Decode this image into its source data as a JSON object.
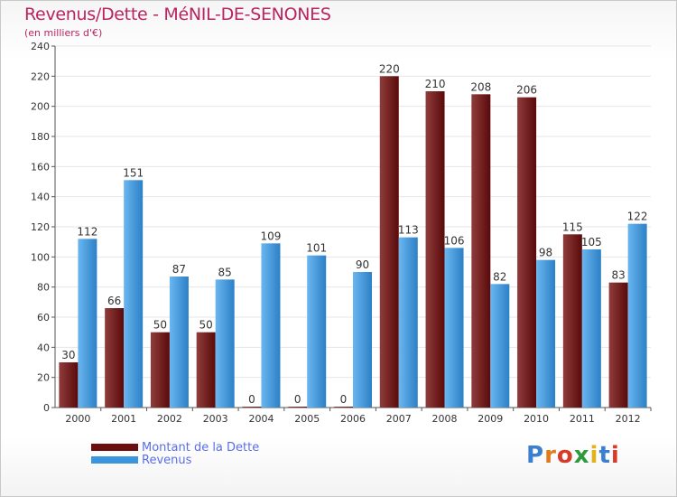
{
  "title": "Revenus/Dette - MéNIL-DE-SENONES",
  "subtitle": "(en milliers d'€)",
  "logo_text": "Proxiti",
  "colors": {
    "dette": "#6b0f0f",
    "dette_light": "#8a3a3a",
    "revenus": "#2f86cc",
    "revenus_light": "#62b0ec",
    "axis_text": "#333333",
    "grid": "#e6e6e6",
    "legend_text": "#5a6ee8"
  },
  "legend": [
    {
      "label": "Montant de la Dette",
      "color": "#6b0f0f"
    },
    {
      "label": "Revenus",
      "color": "#3a95dd"
    }
  ],
  "chart_data": {
    "type": "bar",
    "title": "Revenus/Dette - MéNIL-DE-SENONES",
    "subtitle": "(en milliers d'€)",
    "categories": [
      "2000",
      "2001",
      "2002",
      "2003",
      "2004",
      "2005",
      "2006",
      "2007",
      "2008",
      "2009",
      "2010",
      "2011",
      "2012"
    ],
    "series": [
      {
        "name": "Montant de la Dette",
        "values": [
          30,
          66,
          50,
          50,
          0,
          0,
          0,
          220,
          210,
          208,
          206,
          115,
          83
        ]
      },
      {
        "name": "Revenus",
        "values": [
          112,
          151,
          87,
          85,
          109,
          101,
          90,
          113,
          106,
          82,
          98,
          105,
          122
        ]
      }
    ],
    "ylim": [
      0,
      240
    ],
    "yticks": [
      0,
      20,
      40,
      60,
      80,
      100,
      120,
      140,
      160,
      180,
      200,
      220,
      240
    ],
    "grid": true,
    "legend_position": "bottom-left"
  }
}
